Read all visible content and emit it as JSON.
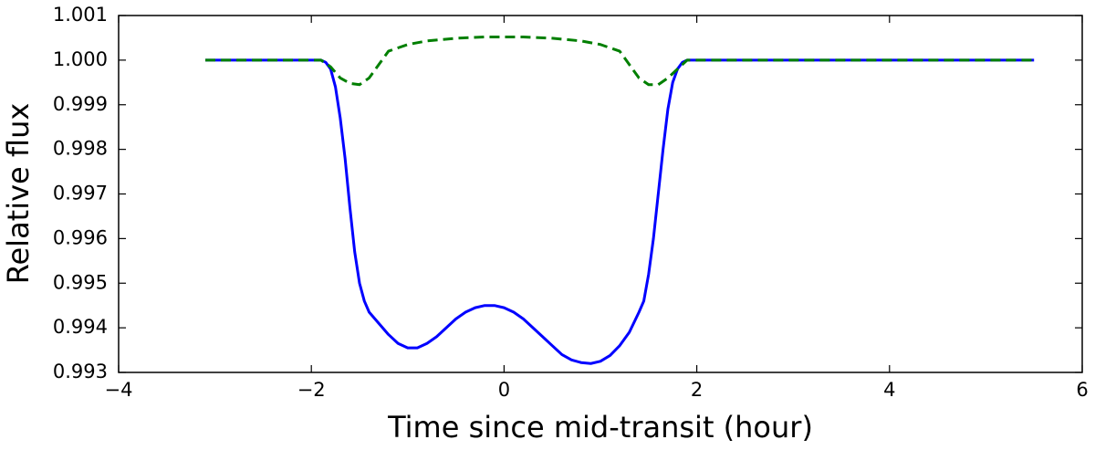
{
  "chart_data": {
    "type": "line",
    "x_label": "Time since mid-transit (hour)",
    "y_label": "Relative flux",
    "xlim": [
      -4,
      6
    ],
    "xticks": [
      {
        "value": -4,
        "label": "−4"
      },
      {
        "value": -2,
        "label": "−2"
      },
      0,
      2,
      4,
      6
    ],
    "ylim": [
      0.993,
      1.001
    ],
    "yticks": [
      0.993,
      0.994,
      0.995,
      0.996,
      0.997,
      0.998,
      0.999,
      {
        "value": 1.0,
        "label": "1.000"
      },
      1.001
    ],
    "series": [
      {
        "color": "#0000ff",
        "dash": false,
        "x": [
          -3.1,
          -1.9,
          -1.85,
          -1.8,
          -1.75,
          -1.7,
          -1.65,
          -1.6,
          -1.55,
          -1.5,
          -1.45,
          -1.4,
          -1.3,
          -1.2,
          -1.1,
          -1.0,
          -0.9,
          -0.8,
          -0.7,
          -0.6,
          -0.5,
          -0.4,
          -0.3,
          -0.2,
          -0.1,
          0.0,
          0.1,
          0.2,
          0.3,
          0.4,
          0.5,
          0.6,
          0.7,
          0.8,
          0.9,
          1.0,
          1.1,
          1.2,
          1.3,
          1.4,
          1.45,
          1.5,
          1.55,
          1.6,
          1.65,
          1.7,
          1.75,
          1.8,
          1.85,
          1.9,
          5.5
        ],
        "values": [
          1.0,
          1.0,
          0.99995,
          0.9998,
          0.9994,
          0.9987,
          0.9978,
          0.9967,
          0.9957,
          0.995,
          0.9946,
          0.99435,
          0.9941,
          0.99385,
          0.99365,
          0.99355,
          0.99355,
          0.99365,
          0.9938,
          0.994,
          0.9942,
          0.99435,
          0.99445,
          0.9945,
          0.9945,
          0.99445,
          0.99435,
          0.9942,
          0.994,
          0.9938,
          0.9936,
          0.9934,
          0.99328,
          0.99322,
          0.9932,
          0.99325,
          0.99338,
          0.9936,
          0.9939,
          0.99435,
          0.9946,
          0.9952,
          0.996,
          0.997,
          0.998,
          0.9989,
          0.9995,
          0.9998,
          0.99995,
          1.0,
          1.0
        ]
      },
      {
        "color": "#007f00",
        "dash": true,
        "x": [
          -3.1,
          -1.9,
          -1.8,
          -1.7,
          -1.6,
          -1.5,
          -1.4,
          -1.3,
          -1.2,
          -1.0,
          -0.8,
          -0.5,
          -0.2,
          0.0,
          0.2,
          0.5,
          0.8,
          1.0,
          1.2,
          1.3,
          1.4,
          1.5,
          1.6,
          1.7,
          1.8,
          1.9,
          5.5
        ],
        "values": [
          1.0,
          1.0,
          0.99985,
          0.9996,
          0.99948,
          0.99945,
          0.9996,
          0.9999,
          1.0002,
          1.00035,
          1.00043,
          1.00049,
          1.00052,
          1.00052,
          1.00052,
          1.00049,
          1.00043,
          1.00035,
          1.0002,
          0.9999,
          0.9996,
          0.99945,
          0.99945,
          0.9996,
          0.9998,
          1.0,
          1.0
        ]
      }
    ]
  }
}
